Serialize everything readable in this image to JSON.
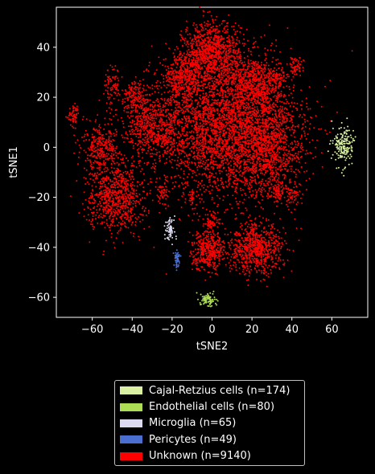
{
  "chart_data": {
    "type": "scatter",
    "xlabel": "tSNE2",
    "ylabel": "tSNE1",
    "xlim": [
      -78,
      78
    ],
    "ylim": [
      -68,
      56
    ],
    "xticks": [
      -60,
      -40,
      -20,
      0,
      20,
      40,
      60
    ],
    "yticks": [
      -60,
      -40,
      -20,
      0,
      20,
      40
    ],
    "grid": false,
    "legend_position": "bottom",
    "series": [
      {
        "name": "Cajal-Retzius cells (n=174)",
        "color": "#d9f0a3",
        "clusters": [
          {
            "center": [
              66,
              1
            ],
            "spread": [
              2.5,
              4
            ],
            "n": 174
          }
        ]
      },
      {
        "name": "Endothelial cells (n=80)",
        "color": "#addd55",
        "clusters": [
          {
            "center": [
              -2,
              -61
            ],
            "spread": [
              2,
              1.4
            ],
            "n": 80
          }
        ]
      },
      {
        "name": "Microglia (n=65)",
        "color": "#dcdaf0",
        "clusters": [
          {
            "center": [
              -21,
              -33
            ],
            "spread": [
              1.2,
              2.5
            ],
            "n": 65
          }
        ]
      },
      {
        "name": "Pericytes (n=49)",
        "color": "#4a6fd0",
        "clusters": [
          {
            "center": [
              -17.5,
              -44.5
            ],
            "spread": [
              0.6,
              1.5
            ],
            "n": 49
          }
        ]
      },
      {
        "name": "Unknown (n=9140)",
        "color": "#ff0000",
        "clusters": [
          {
            "center": [
              5,
              8
            ],
            "spread": [
              18,
              14
            ],
            "n": 3200
          },
          {
            "center": [
              0,
              38
            ],
            "spread": [
              7,
              6
            ],
            "n": 900
          },
          {
            "center": [
              -14,
              28
            ],
            "spread": [
              5,
              5
            ],
            "n": 400
          },
          {
            "center": [
              22,
              25
            ],
            "spread": [
              6,
              6
            ],
            "n": 500
          },
          {
            "center": [
              28,
              0
            ],
            "spread": [
              9,
              10
            ],
            "n": 900
          },
          {
            "center": [
              -30,
              8
            ],
            "spread": [
              7,
              6
            ],
            "n": 450
          },
          {
            "center": [
              -48,
              -20
            ],
            "spread": [
              7,
              7
            ],
            "n": 750
          },
          {
            "center": [
              -55,
              0
            ],
            "spread": [
              5,
              5
            ],
            "n": 300
          },
          {
            "center": [
              -38,
              20
            ],
            "spread": [
              4,
              3
            ],
            "n": 150
          },
          {
            "center": [
              -50,
              25
            ],
            "spread": [
              2,
              4
            ],
            "n": 80
          },
          {
            "center": [
              -69,
              12
            ],
            "spread": [
              1.5,
              2.5
            ],
            "n": 60
          },
          {
            "center": [
              42,
              32
            ],
            "spread": [
              2,
              2
            ],
            "n": 60
          },
          {
            "center": [
              33,
              28
            ],
            "spread": [
              2.5,
              2
            ],
            "n": 60
          },
          {
            "center": [
              22,
              -41
            ],
            "spread": [
              7,
              5
            ],
            "n": 700
          },
          {
            "center": [
              -2,
              -41
            ],
            "spread": [
              4,
              4
            ],
            "n": 400
          },
          {
            "center": [
              0,
              -30
            ],
            "spread": [
              2,
              2
            ],
            "n": 60
          },
          {
            "center": [
              33,
              -18
            ],
            "spread": [
              2,
              2
            ],
            "n": 60
          },
          {
            "center": [
              -25,
              -18
            ],
            "spread": [
              1.2,
              2
            ],
            "n": 40
          },
          {
            "center": [
              -10,
              -20
            ],
            "spread": [
              0.8,
              1.2
            ],
            "n": 20
          },
          {
            "center": [
              40,
              -20
            ],
            "spread": [
              2,
              2.5
            ],
            "n": 50
          }
        ]
      }
    ]
  }
}
